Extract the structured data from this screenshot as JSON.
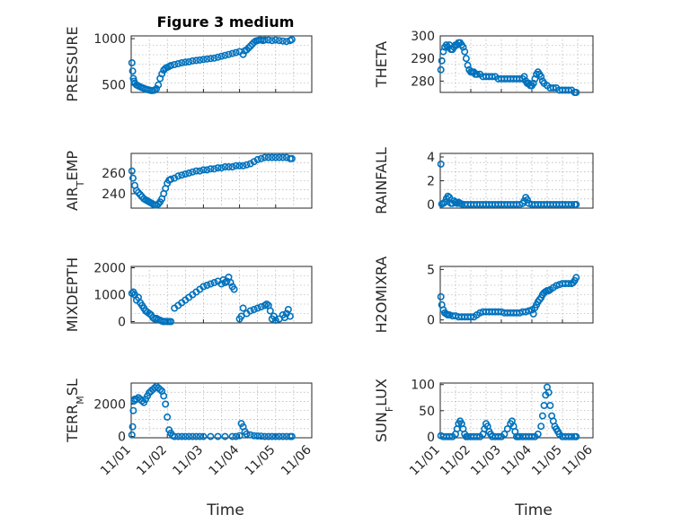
{
  "figure": {
    "title": "Figure 3 medium",
    "x_axis_label": "Time",
    "x_ticks": [
      "11/01",
      "11/02",
      "11/03",
      "11/04",
      "11/05",
      "11/06"
    ],
    "marker": "circle",
    "marker_color": "#0072bd",
    "grid": "on (major and minor)"
  },
  "chart_data": [
    {
      "type": "scatter",
      "title": "Figure 3 medium",
      "ylabel": "PRESSURE",
      "ylabel_parts": [
        {
          "t": "PRESSURE"
        }
      ],
      "xlabel": "",
      "x_ticks": [],
      "xlim": [
        0,
        5
      ],
      "ylim": [
        420,
        1030
      ],
      "y_ticks": [
        500,
        1000
      ],
      "y_tick_labels": [
        "500",
        "1000"
      ],
      "x": [
        0.02,
        0.04,
        0.06,
        0.08,
        0.1,
        0.15,
        0.2,
        0.25,
        0.3,
        0.35,
        0.4,
        0.45,
        0.5,
        0.55,
        0.6,
        0.65,
        0.7,
        0.75,
        0.8,
        0.85,
        0.9,
        0.95,
        1.0,
        1.05,
        1.1,
        1.2,
        1.3,
        1.4,
        1.5,
        1.6,
        1.7,
        1.8,
        1.9,
        2.0,
        2.1,
        2.2,
        2.3,
        2.4,
        2.5,
        2.6,
        2.7,
        2.8,
        2.9,
        3.0,
        3.1,
        3.15,
        3.2,
        3.25,
        3.3,
        3.35,
        3.4,
        3.45,
        3.5,
        3.55,
        3.6,
        3.65,
        3.7,
        3.8,
        3.9,
        4.0,
        4.1,
        4.2,
        4.3,
        4.4,
        4.45
      ],
      "y": [
        740,
        650,
        570,
        540,
        520,
        500,
        490,
        480,
        470,
        465,
        455,
        450,
        445,
        440,
        440,
        445,
        460,
        500,
        570,
        620,
        660,
        680,
        690,
        700,
        710,
        720,
        730,
        740,
        745,
        750,
        760,
        765,
        770,
        775,
        780,
        785,
        790,
        800,
        810,
        820,
        830,
        840,
        850,
        860,
        830,
        870,
        880,
        900,
        920,
        940,
        960,
        975,
        980,
        985,
        985,
        980,
        985,
        985,
        980,
        985,
        980,
        975,
        970,
        980,
        990
      ]
    },
    {
      "type": "scatter",
      "title": "",
      "ylabel": "THETA",
      "ylabel_parts": [
        {
          "t": "THETA"
        }
      ],
      "xlabel": "",
      "x_ticks": [],
      "xlim": [
        0,
        5
      ],
      "ylim": [
        275,
        300
      ],
      "y_ticks": [
        280,
        290,
        300
      ],
      "y_tick_labels": [
        "280",
        "290",
        "300"
      ],
      "x": [
        0.02,
        0.05,
        0.1,
        0.15,
        0.2,
        0.25,
        0.3,
        0.35,
        0.4,
        0.45,
        0.5,
        0.55,
        0.6,
        0.65,
        0.7,
        0.75,
        0.8,
        0.85,
        0.9,
        0.95,
        1.0,
        1.05,
        1.1,
        1.15,
        1.2,
        1.3,
        1.4,
        1.5,
        1.6,
        1.7,
        1.8,
        1.9,
        2.0,
        2.1,
        2.2,
        2.3,
        2.4,
        2.5,
        2.6,
        2.7,
        2.75,
        2.8,
        2.85,
        2.9,
        2.95,
        3.0,
        3.05,
        3.1,
        3.15,
        3.2,
        3.25,
        3.3,
        3.35,
        3.4,
        3.5,
        3.6,
        3.7,
        3.8,
        3.9,
        4.0,
        4.1,
        4.2,
        4.3,
        4.4,
        4.45
      ],
      "y": [
        285,
        289,
        293,
        295,
        296,
        295,
        296,
        294,
        294,
        295,
        296,
        296,
        297,
        297,
        296,
        295,
        293,
        290,
        287,
        285,
        284,
        284,
        284,
        283,
        283,
        283,
        282,
        282,
        282,
        282,
        282,
        281,
        281,
        281,
        281,
        281,
        281,
        281,
        281,
        281,
        282,
        280,
        279,
        279,
        278,
        278,
        279,
        281,
        283,
        284,
        283,
        282,
        280,
        279,
        278,
        277,
        277,
        277,
        276,
        276,
        276,
        276,
        276,
        275,
        275
      ]
    },
    {
      "type": "scatter",
      "title": "",
      "ylabel": "AIR_TEMP",
      "ylabel_parts": [
        {
          "t": "AIR"
        },
        {
          "t": "T",
          "sub": true
        },
        {
          "t": "EMP"
        }
      ],
      "xlabel": "",
      "x_ticks": [],
      "xlim": [
        0,
        5
      ],
      "ylim": [
        226,
        279
      ],
      "y_ticks": [
        240,
        260
      ],
      "y_tick_labels": [
        "240",
        "260"
      ],
      "x": [
        0.02,
        0.05,
        0.1,
        0.15,
        0.2,
        0.25,
        0.3,
        0.35,
        0.4,
        0.45,
        0.5,
        0.55,
        0.6,
        0.65,
        0.7,
        0.75,
        0.8,
        0.85,
        0.9,
        0.95,
        1.0,
        1.05,
        1.1,
        1.2,
        1.3,
        1.4,
        1.5,
        1.6,
        1.7,
        1.8,
        1.9,
        2.0,
        2.1,
        2.2,
        2.3,
        2.4,
        2.5,
        2.6,
        2.7,
        2.8,
        2.9,
        3.0,
        3.1,
        3.2,
        3.3,
        3.4,
        3.5,
        3.6,
        3.7,
        3.8,
        3.9,
        4.0,
        4.1,
        4.2,
        4.3,
        4.4,
        4.45
      ],
      "y": [
        262,
        255,
        248,
        243,
        241,
        239,
        237,
        235,
        234,
        233,
        232,
        231,
        230,
        229,
        229,
        230,
        232,
        235,
        240,
        245,
        250,
        253,
        254,
        255,
        257,
        258,
        259,
        260,
        261,
        262,
        262,
        263,
        263,
        264,
        264,
        265,
        265,
        266,
        266,
        266,
        267,
        267,
        267,
        268,
        269,
        271,
        273,
        274,
        275,
        275,
        275,
        275,
        275,
        275,
        275,
        274,
        274
      ]
    },
    {
      "type": "scatter",
      "title": "",
      "ylabel": "RAINFALL",
      "ylabel_parts": [
        {
          "t": "RAINFALL"
        }
      ],
      "xlabel": "",
      "x_ticks": [],
      "xlim": [
        0,
        5
      ],
      "ylim": [
        -0.3,
        4.3
      ],
      "y_ticks": [
        0,
        2,
        4
      ],
      "y_tick_labels": [
        "0",
        "2",
        "4"
      ],
      "x": [
        0.02,
        0.05,
        0.1,
        0.15,
        0.2,
        0.25,
        0.3,
        0.35,
        0.4,
        0.45,
        0.5,
        0.55,
        0.6,
        0.65,
        0.7,
        0.8,
        0.9,
        1.0,
        1.1,
        1.2,
        1.3,
        1.4,
        1.5,
        1.6,
        1.7,
        1.8,
        1.9,
        2.0,
        2.1,
        2.2,
        2.3,
        2.4,
        2.5,
        2.6,
        2.7,
        2.75,
        2.8,
        2.85,
        2.9,
        3.0,
        3.1,
        3.2,
        3.3,
        3.4,
        3.5,
        3.6,
        3.7,
        3.8,
        3.9,
        4.0,
        4.1,
        4.2,
        4.3,
        4.4,
        4.45
      ],
      "y": [
        3.4,
        0.05,
        0.1,
        0.2,
        0.5,
        0.7,
        0.6,
        0.1,
        0.1,
        0.3,
        0.2,
        0.1,
        0.2,
        0.1,
        0.05,
        0,
        0,
        0,
        0,
        0,
        0,
        0,
        0,
        0,
        0,
        0,
        0,
        0,
        0,
        0,
        0,
        0,
        0,
        0,
        0.1,
        0.3,
        0.6,
        0.4,
        0.1,
        0,
        0,
        0,
        0,
        0,
        0,
        0,
        0,
        0,
        0,
        0,
        0,
        0,
        0,
        0,
        0
      ]
    },
    {
      "type": "scatter",
      "title": "",
      "ylabel": "MIXDEPTH",
      "ylabel_parts": [
        {
          "t": "MIXDEPTH"
        }
      ],
      "xlabel": "",
      "x_ticks": [],
      "xlim": [
        0,
        5
      ],
      "ylim": [
        -50,
        2050
      ],
      "y_ticks": [
        0,
        1000,
        2000
      ],
      "y_tick_labels": [
        "0",
        "1000",
        "2000"
      ],
      "x": [
        0.02,
        0.06,
        0.1,
        0.15,
        0.2,
        0.25,
        0.3,
        0.35,
        0.4,
        0.45,
        0.5,
        0.55,
        0.6,
        0.65,
        0.7,
        0.75,
        0.8,
        0.85,
        0.9,
        0.95,
        1.0,
        1.05,
        1.1,
        1.2,
        1.3,
        1.4,
        1.5,
        1.6,
        1.7,
        1.8,
        1.9,
        2.0,
        2.1,
        2.2,
        2.3,
        2.4,
        2.5,
        2.55,
        2.6,
        2.65,
        2.7,
        2.75,
        2.8,
        2.85,
        3.0,
        3.05,
        3.1,
        3.2,
        3.3,
        3.4,
        3.5,
        3.6,
        3.7,
        3.75,
        3.8,
        3.85,
        3.9,
        3.95,
        4.0,
        4.1,
        4.2,
        4.25,
        4.3,
        4.35,
        4.4
      ],
      "y": [
        1050,
        1100,
        1000,
        800,
        900,
        700,
        600,
        500,
        400,
        350,
        300,
        250,
        150,
        100,
        120,
        80,
        50,
        20,
        0,
        10,
        0,
        5,
        0,
        500,
        600,
        700,
        800,
        900,
        1000,
        1100,
        1200,
        1300,
        1350,
        1400,
        1450,
        1500,
        1400,
        1550,
        1450,
        1500,
        1650,
        1450,
        1300,
        1200,
        100,
        200,
        500,
        300,
        400,
        450,
        500,
        550,
        600,
        650,
        600,
        400,
        100,
        200,
        50,
        100,
        250,
        150,
        300,
        450,
        200
      ]
    },
    {
      "type": "scatter",
      "title": "",
      "ylabel": "H2OMIXRA",
      "ylabel_parts": [
        {
          "t": "H2OMIXRA"
        }
      ],
      "xlabel": "",
      "x_ticks": [],
      "xlim": [
        0,
        5
      ],
      "ylim": [
        -0.3,
        5.3
      ],
      "y_ticks": [
        0,
        5
      ],
      "y_tick_labels": [
        "0",
        "5"
      ],
      "x": [
        0.02,
        0.05,
        0.1,
        0.15,
        0.2,
        0.25,
        0.3,
        0.4,
        0.5,
        0.6,
        0.7,
        0.8,
        0.9,
        1.0,
        1.1,
        1.2,
        1.3,
        1.4,
        1.5,
        1.6,
        1.7,
        1.8,
        1.9,
        2.0,
        2.1,
        2.2,
        2.3,
        2.4,
        2.5,
        2.6,
        2.7,
        2.8,
        2.9,
        3.0,
        3.05,
        3.1,
        3.15,
        3.2,
        3.25,
        3.3,
        3.35,
        3.4,
        3.45,
        3.5,
        3.55,
        3.6,
        3.7,
        3.8,
        3.9,
        4.0,
        4.1,
        4.2,
        4.3,
        4.35,
        4.4,
        4.45
      ],
      "y": [
        2.3,
        1.5,
        1.0,
        0.7,
        0.6,
        0.5,
        0.5,
        0.4,
        0.4,
        0.3,
        0.3,
        0.3,
        0.3,
        0.3,
        0.3,
        0.5,
        0.7,
        0.8,
        0.8,
        0.8,
        0.8,
        0.8,
        0.8,
        0.8,
        0.7,
        0.7,
        0.7,
        0.7,
        0.7,
        0.7,
        0.8,
        0.8,
        0.9,
        1.0,
        0.6,
        1.2,
        1.5,
        1.8,
        2.0,
        2.2,
        2.5,
        2.7,
        2.8,
        2.9,
        2.9,
        3.0,
        3.2,
        3.4,
        3.5,
        3.6,
        3.6,
        3.6,
        3.6,
        3.7,
        3.9,
        4.2
      ]
    },
    {
      "type": "scatter",
      "title": "",
      "ylabel": "TERR_MSL",
      "ylabel_parts": [
        {
          "t": "TERR"
        },
        {
          "t": "M",
          "sub": true
        },
        {
          "t": "SL"
        }
      ],
      "xlabel": "",
      "x_ticks": [
        "11/01",
        "11/02",
        "11/03",
        "11/04",
        "11/05",
        "11/06"
      ],
      "xlim": [
        0,
        5
      ],
      "ylim": [
        -80,
        3300
      ],
      "y_ticks": [
        0,
        2000
      ],
      "y_tick_labels": [
        "0",
        "2000"
      ],
      "x": [
        0.02,
        0.04,
        0.06,
        0.08,
        0.1,
        0.15,
        0.2,
        0.25,
        0.3,
        0.35,
        0.4,
        0.45,
        0.5,
        0.55,
        0.6,
        0.65,
        0.7,
        0.75,
        0.8,
        0.85,
        0.9,
        0.95,
        1.0,
        1.05,
        1.1,
        1.15,
        1.2,
        1.3,
        1.4,
        1.5,
        1.6,
        1.7,
        1.8,
        1.9,
        2.0,
        2.2,
        2.4,
        2.6,
        2.8,
        2.9,
        3.0,
        3.05,
        3.1,
        3.15,
        3.2,
        3.3,
        3.4,
        3.5,
        3.6,
        3.7,
        3.8,
        3.9,
        4.0,
        4.1,
        4.2,
        4.3,
        4.4,
        4.45
      ],
      "y": [
        100,
        600,
        1600,
        2200,
        2300,
        2300,
        2400,
        2300,
        2200,
        2100,
        2300,
        2500,
        2700,
        2800,
        2900,
        3000,
        3100,
        3000,
        2900,
        2800,
        2500,
        2000,
        1200,
        400,
        200,
        50,
        0,
        0,
        0,
        0,
        0,
        0,
        0,
        0,
        0,
        0,
        0,
        0,
        0,
        0,
        50,
        800,
        600,
        300,
        150,
        100,
        50,
        30,
        20,
        0,
        0,
        0,
        0,
        0,
        0,
        0,
        0,
        0
      ]
    },
    {
      "type": "scatter",
      "title": "",
      "ylabel": "SUN_FLUX",
      "ylabel_parts": [
        {
          "t": "SUN"
        },
        {
          "t": "F",
          "sub": true
        },
        {
          "t": "LUX"
        }
      ],
      "xlabel": "",
      "x_ticks": [
        "11/01",
        "11/02",
        "11/03",
        "11/04",
        "11/05",
        "11/06"
      ],
      "xlim": [
        0,
        5
      ],
      "ylim": [
        -2,
        103
      ],
      "y_ticks": [
        0,
        50,
        100
      ],
      "y_tick_labels": [
        "0",
        "50",
        "100"
      ],
      "x": [
        0.02,
        0.1,
        0.2,
        0.3,
        0.4,
        0.5,
        0.55,
        0.6,
        0.65,
        0.7,
        0.75,
        0.8,
        0.85,
        0.9,
        1.0,
        1.1,
        1.2,
        1.3,
        1.4,
        1.45,
        1.5,
        1.55,
        1.6,
        1.65,
        1.7,
        1.8,
        1.9,
        2.0,
        2.1,
        2.2,
        2.3,
        2.35,
        2.4,
        2.45,
        2.5,
        2.55,
        2.6,
        2.7,
        2.8,
        2.9,
        3.0,
        3.1,
        3.2,
        3.3,
        3.35,
        3.4,
        3.45,
        3.5,
        3.55,
        3.6,
        3.65,
        3.7,
        3.75,
        3.8,
        3.85,
        3.9,
        4.0,
        4.1,
        4.2,
        4.3,
        4.4,
        4.45
      ],
      "y": [
        2,
        0,
        0,
        0,
        0,
        5,
        15,
        25,
        30,
        25,
        15,
        5,
        0,
        0,
        0,
        0,
        0,
        0,
        5,
        15,
        25,
        20,
        10,
        5,
        0,
        0,
        0,
        0,
        5,
        15,
        25,
        30,
        20,
        10,
        0,
        0,
        0,
        0,
        0,
        0,
        0,
        0,
        5,
        20,
        40,
        60,
        80,
        95,
        85,
        60,
        40,
        30,
        20,
        15,
        10,
        5,
        0,
        0,
        0,
        0,
        0,
        0
      ]
    }
  ]
}
